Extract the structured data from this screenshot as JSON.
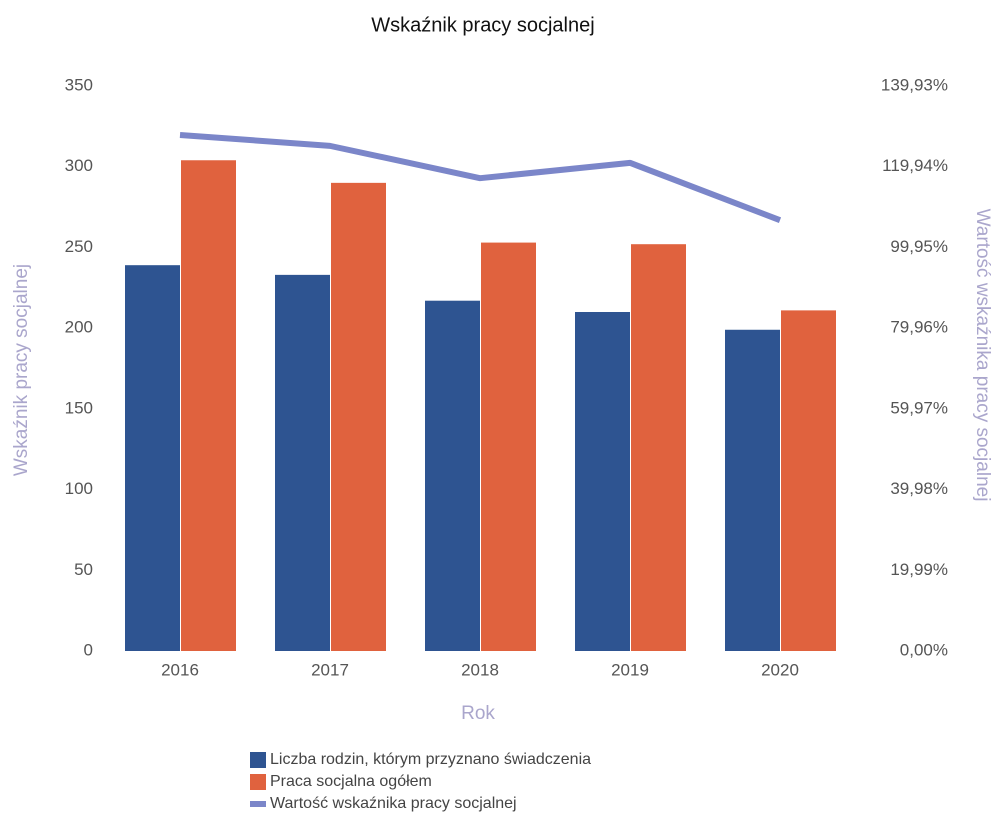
{
  "chart_data": {
    "type": "bar",
    "title": "Wskaźnik pracy socjalnej",
    "x_label": "Rok",
    "y_label": "Wskaźnik pracy socjalnej",
    "y2_label": "Wartość wskaźnika pracy socjalnej",
    "categories": [
      "2016",
      "2017",
      "2018",
      "2019",
      "2020"
    ],
    "ylim": [
      0,
      350
    ],
    "yticks": [
      0,
      50,
      100,
      150,
      200,
      250,
      300,
      350
    ],
    "y2lim": [
      0,
      139.93
    ],
    "y2ticks": [
      {
        "value": 0,
        "label": "0,00%"
      },
      {
        "value": 19.99,
        "label": "19,99%"
      },
      {
        "value": 39.98,
        "label": "39,98%"
      },
      {
        "value": 59.97,
        "label": "59,97%"
      },
      {
        "value": 79.96,
        "label": "79,96%"
      },
      {
        "value": 99.95,
        "label": "99,95%"
      },
      {
        "value": 119.94,
        "label": "119,94%"
      },
      {
        "value": 139.93,
        "label": "139,93%"
      }
    ],
    "grid": false,
    "legend": "bottom",
    "series": [
      {
        "name": "Liczba rodzin, którym przyznano świadczenia",
        "type": "bar",
        "color": "#2e5491",
        "values": [
          239,
          233,
          217,
          210,
          199
        ]
      },
      {
        "name": "Praca socjalna ogółem",
        "type": "bar",
        "color": "#e0623e",
        "values": [
          304,
          290,
          253,
          252,
          211
        ]
      },
      {
        "name": "Wartość wskaźnika pracy socjalnej",
        "type": "line",
        "axis": "y2",
        "color": "#7b86c9",
        "values": [
          127.8,
          125.1,
          117.1,
          120.9,
          106.7
        ]
      }
    ]
  }
}
